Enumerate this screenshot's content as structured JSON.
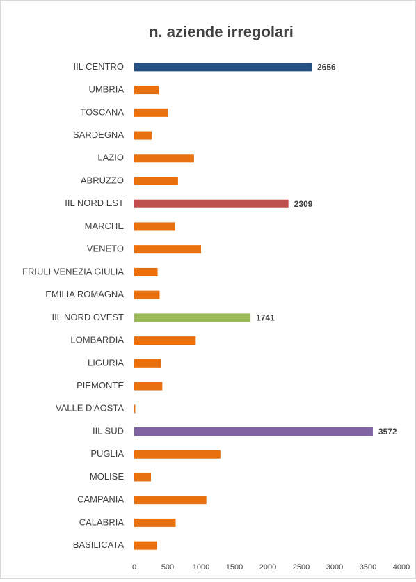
{
  "chart_data": {
    "type": "barh",
    "title": "n. aziende irregolari",
    "categories": [
      "IIL CENTRO",
      "UMBRIA",
      "TOSCANA",
      "SARDEGNA",
      "LAZIO",
      "ABRUZZO",
      "IIL NORD EST",
      "MARCHE",
      "VENETO",
      "FRIULI VENEZIA GIULIA",
      "EMILIA ROMAGNA",
      "IIL NORD OVEST",
      "LOMBARDIA",
      "LIGURIA",
      "PIEMONTE",
      "VALLE D'AOSTA",
      "IIL SUD",
      "PUGLIA",
      "MOLISE",
      "CAMPANIA",
      "CALABRIA",
      "BASILICATA"
    ],
    "values": [
      2656,
      365,
      500,
      260,
      895,
      655,
      2309,
      615,
      1000,
      350,
      380,
      1741,
      920,
      400,
      420,
      15,
      3572,
      1290,
      250,
      1080,
      620,
      340
    ],
    "value_labels": [
      "2656",
      null,
      null,
      null,
      null,
      null,
      "2309",
      null,
      null,
      null,
      null,
      "1741",
      null,
      null,
      null,
      null,
      "3572",
      null,
      null,
      null,
      null,
      null
    ],
    "colors": [
      "#234f82",
      "#e8700f",
      "#e8700f",
      "#e8700f",
      "#e8700f",
      "#e8700f",
      "#c0504d",
      "#e8700f",
      "#e8700f",
      "#e8700f",
      "#e8700f",
      "#9bbb59",
      "#e8700f",
      "#e8700f",
      "#e8700f",
      "#e8700f",
      "#8064a2",
      "#e8700f",
      "#e8700f",
      "#e8700f",
      "#e8700f",
      "#e8700f"
    ],
    "xlim": [
      0,
      4000
    ],
    "xticks": [
      0,
      500,
      1000,
      1500,
      2000,
      2500,
      3000,
      3500,
      4000
    ],
    "grid": false
  }
}
